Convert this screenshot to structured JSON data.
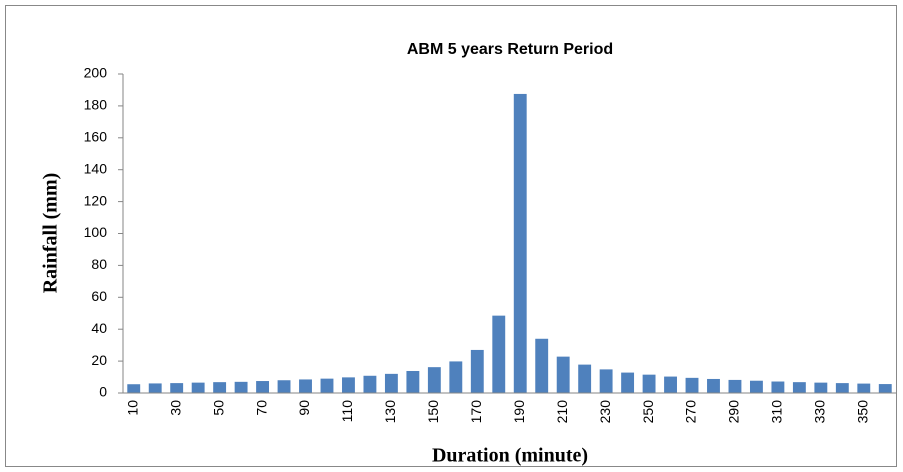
{
  "chart_data": {
    "type": "bar",
    "title": "ABM 5 years Return Period",
    "x_label": "Duration (minute)",
    "y_label": "Rainfall (mm)",
    "categories": [
      "10",
      null,
      "30",
      null,
      "50",
      null,
      "70",
      null,
      "90",
      null,
      "110",
      null,
      "130",
      null,
      "150",
      null,
      "170",
      null,
      "190",
      null,
      "210",
      null,
      "230",
      null,
      "250",
      null,
      "270",
      null,
      "290",
      null,
      "310",
      null,
      "330",
      null,
      "350",
      null
    ],
    "values": [
      5.5,
      6,
      6.2,
      6.5,
      6.8,
      7,
      7.5,
      8,
      8.5,
      9,
      9.8,
      10.8,
      12,
      13.8,
      16.2,
      19.8,
      27,
      48.5,
      187.5,
      34,
      22.8,
      17.8,
      14.8,
      12.8,
      11.5,
      10.3,
      9.5,
      8.8,
      8.2,
      7.7,
      7.2,
      6.8,
      6.5,
      6.2,
      5.9,
      5.6
    ],
    "color": "#4f81bd",
    "ylim": [
      0,
      200
    ],
    "yticks": [
      0,
      20,
      40,
      60,
      80,
      100,
      120,
      140,
      160,
      180,
      200
    ],
    "grid": false
  }
}
